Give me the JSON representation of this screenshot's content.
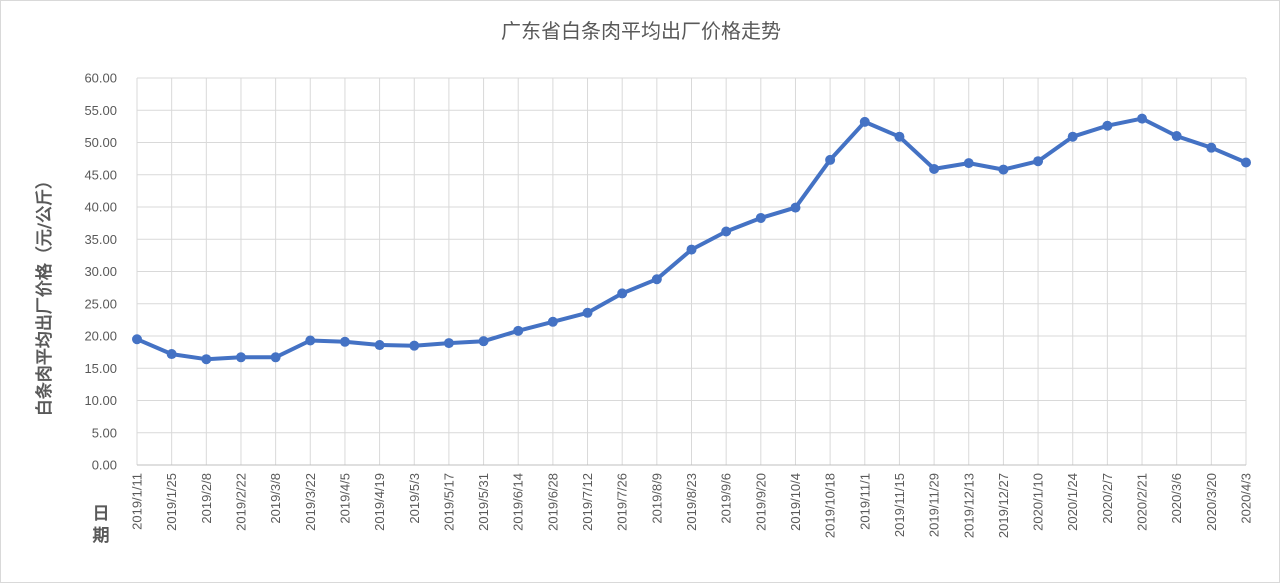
{
  "chart_data": {
    "type": "line",
    "title": "广东省白条肉平均出厂价格走势",
    "ylabel": "白条肉平均出厂价格（元/公斤）",
    "xlabel": "日期",
    "ylim": [
      0,
      60
    ],
    "ytick_step": 5,
    "ytick_labels": [
      "0.00",
      "5.00",
      "10.00",
      "15.00",
      "20.00",
      "25.00",
      "30.00",
      "35.00",
      "40.00",
      "45.00",
      "50.00",
      "55.00",
      "60.00"
    ],
    "grid": true,
    "legend": "none",
    "colors": {
      "series": "#4472c4",
      "grid": "#d9d9d9",
      "text": "#595959"
    },
    "categories": [
      "2019/1/11",
      "2019/1/25",
      "2019/2/8",
      "2019/2/22",
      "2019/3/8",
      "2019/3/22",
      "2019/4/5",
      "2019/4/19",
      "2019/5/3",
      "2019/5/17",
      "2019/5/31",
      "2019/6/14",
      "2019/6/28",
      "2019/7/12",
      "2019/7/26",
      "2019/8/9",
      "2019/8/23",
      "2019/9/6",
      "2019/9/20",
      "2019/10/4",
      "2019/10/18",
      "2019/11/1",
      "2019/11/15",
      "2019/11/29",
      "2019/12/13",
      "2019/12/27",
      "2020/1/10",
      "2020/1/24",
      "2020/2/7",
      "2020/2/21",
      "2020/3/6",
      "2020/3/20",
      "2020/4/3"
    ],
    "series": [
      {
        "values": [
          19.5,
          17.2,
          16.4,
          16.7,
          16.7,
          19.3,
          19.1,
          18.6,
          18.5,
          18.9,
          19.2,
          20.8,
          22.2,
          23.6,
          26.6,
          28.8,
          33.4,
          36.2,
          38.3,
          39.9,
          47.3,
          53.2,
          50.9,
          45.9,
          46.8,
          45.8,
          47.1,
          50.9,
          52.6,
          53.7,
          51.0,
          49.2,
          46.9
        ]
      }
    ]
  }
}
